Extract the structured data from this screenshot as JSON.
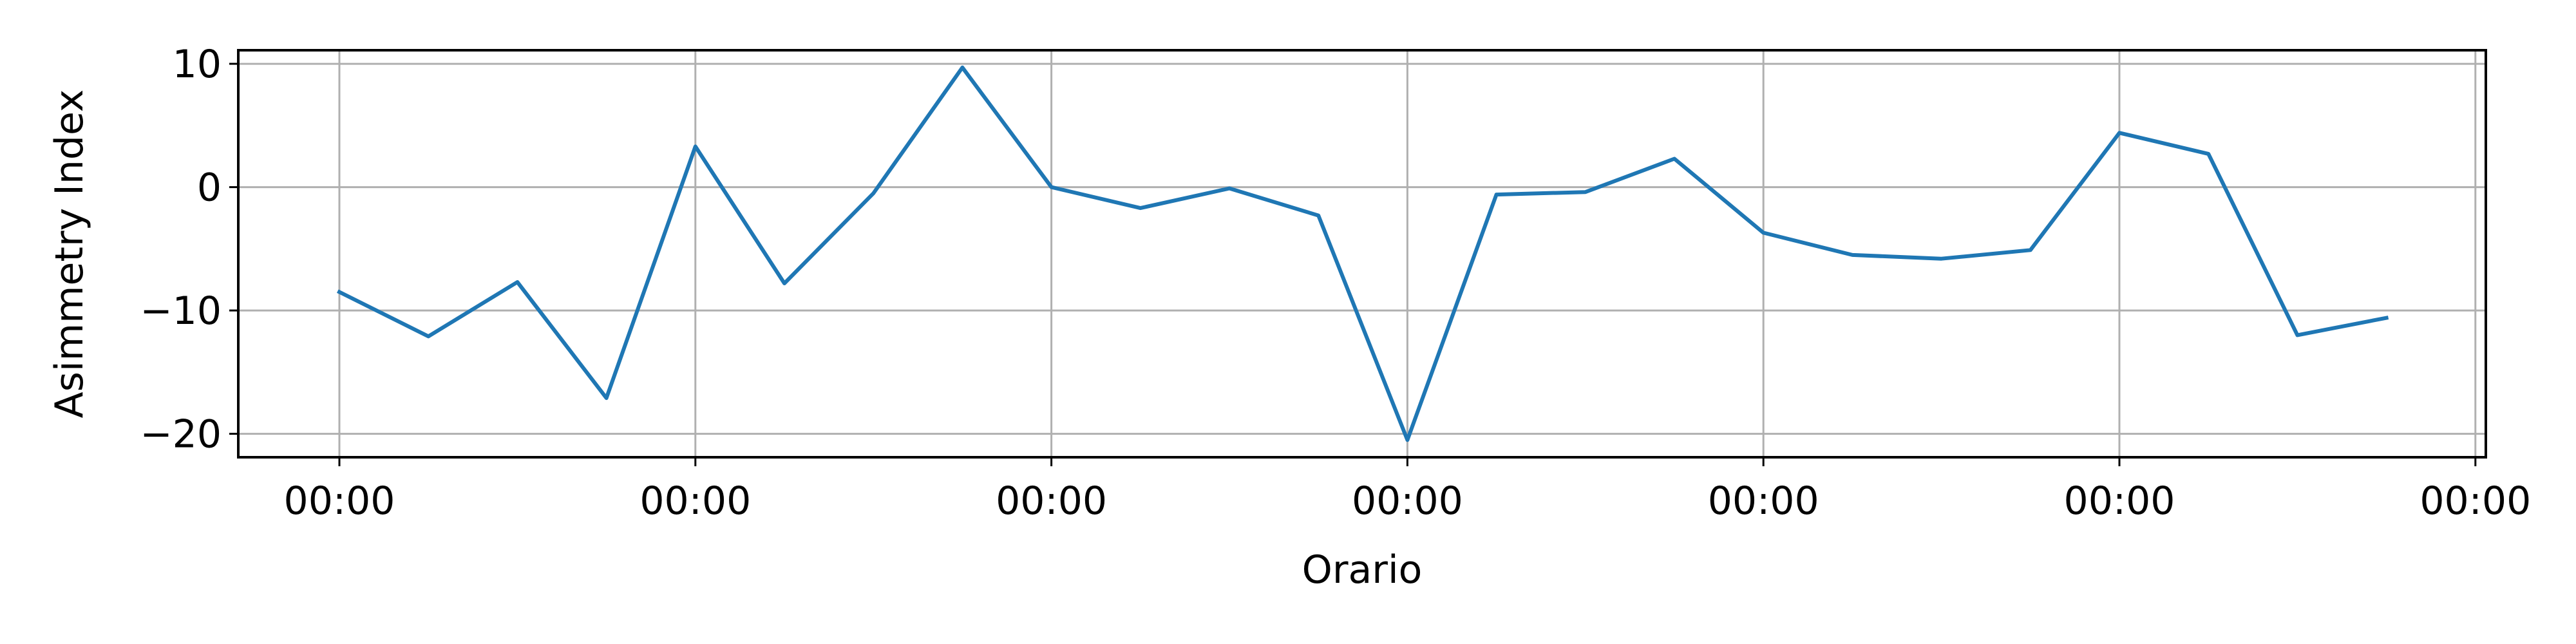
{
  "chart_data": {
    "type": "line",
    "title": "",
    "xlabel": "Orario",
    "ylabel": "Asimmetry Index",
    "xtick_labels": [
      "00:00",
      "00:00",
      "00:00",
      "00:00",
      "00:00",
      "00:00",
      "00:00"
    ],
    "yticks": [
      10,
      0,
      -10,
      -20
    ],
    "ytick_labels": [
      "10",
      "0",
      "−10",
      "−20"
    ],
    "ylim": [
      -21.9,
      11.1
    ],
    "grid": true,
    "series": [
      {
        "color": "#1f77b4",
        "x": [
          0,
          1,
          2,
          3,
          4,
          5,
          6,
          7,
          8,
          9,
          10,
          11,
          12,
          13,
          14,
          15,
          16,
          17,
          18,
          19,
          20,
          21,
          22,
          23
        ],
        "values": [
          -8.5,
          -12.1,
          -7.7,
          -17.1,
          3.3,
          -7.8,
          -0.5,
          9.7,
          0.0,
          -1.7,
          -0.1,
          -2.3,
          -20.5,
          -0.6,
          -0.4,
          2.3,
          -3.7,
          -5.5,
          -5.8,
          -5.1,
          4.4,
          2.7,
          -12.0,
          -10.6
        ]
      }
    ]
  }
}
